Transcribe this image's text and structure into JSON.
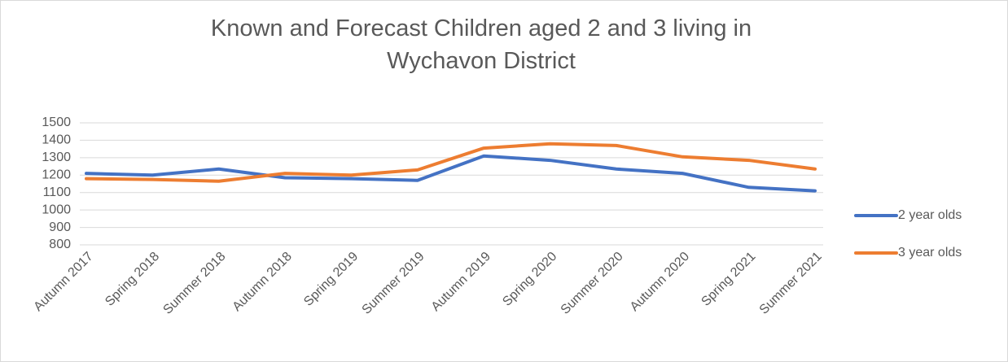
{
  "chart_data": {
    "type": "line",
    "title": "Known and Forecast Children aged 2 and 3 living in Wychavon District",
    "categories": [
      "Autumn 2017",
      "Spring 2018",
      "Summer 2018",
      "Autumn 2018",
      "Spring 2019",
      "Summer 2019",
      "Autumn 2019",
      "Spring 2020",
      "Summer 2020",
      "Autumn 2020",
      "Spring 2021",
      "Summer 2021"
    ],
    "series": [
      {
        "name": "2 year olds",
        "color": "#4472c4",
        "values": [
          1210,
          1200,
          1235,
          1185,
          1180,
          1170,
          1310,
          1285,
          1235,
          1210,
          1130,
          1110
        ]
      },
      {
        "name": "3 year olds",
        "color": "#ed7d31",
        "values": [
          1180,
          1175,
          1165,
          1210,
          1200,
          1230,
          1355,
          1380,
          1370,
          1305,
          1285,
          1235
        ]
      }
    ],
    "ylim": [
      800,
      1500
    ],
    "yticks": [
      800,
      900,
      1000,
      1100,
      1200,
      1300,
      1400,
      1500
    ],
    "grid": true,
    "legend": "right"
  }
}
